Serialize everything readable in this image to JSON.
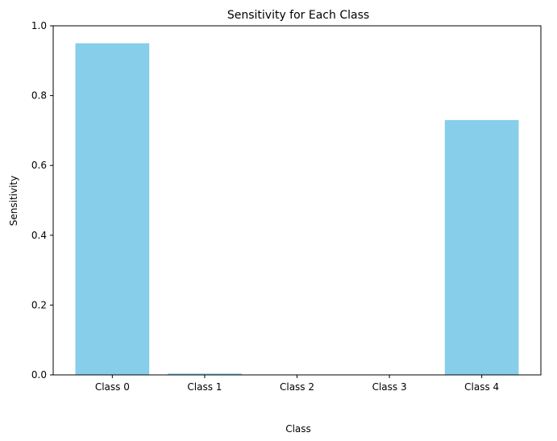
{
  "chart_data": {
    "type": "bar",
    "title": "Sensitivity for Each Class",
    "xlabel": "Class",
    "ylabel": "Sensitivity",
    "categories": [
      "Class 0",
      "Class 1",
      "Class 2",
      "Class 3",
      "Class 4"
    ],
    "values": [
      0.95,
      0.004,
      0.0,
      0.0,
      0.73
    ],
    "ylim": [
      0,
      1.0
    ],
    "yticks": [
      "0.0",
      "0.2",
      "0.4",
      "0.6",
      "0.8",
      "1.0"
    ],
    "grid": false,
    "legend": "none",
    "bar_color": "#87CEEB"
  }
}
